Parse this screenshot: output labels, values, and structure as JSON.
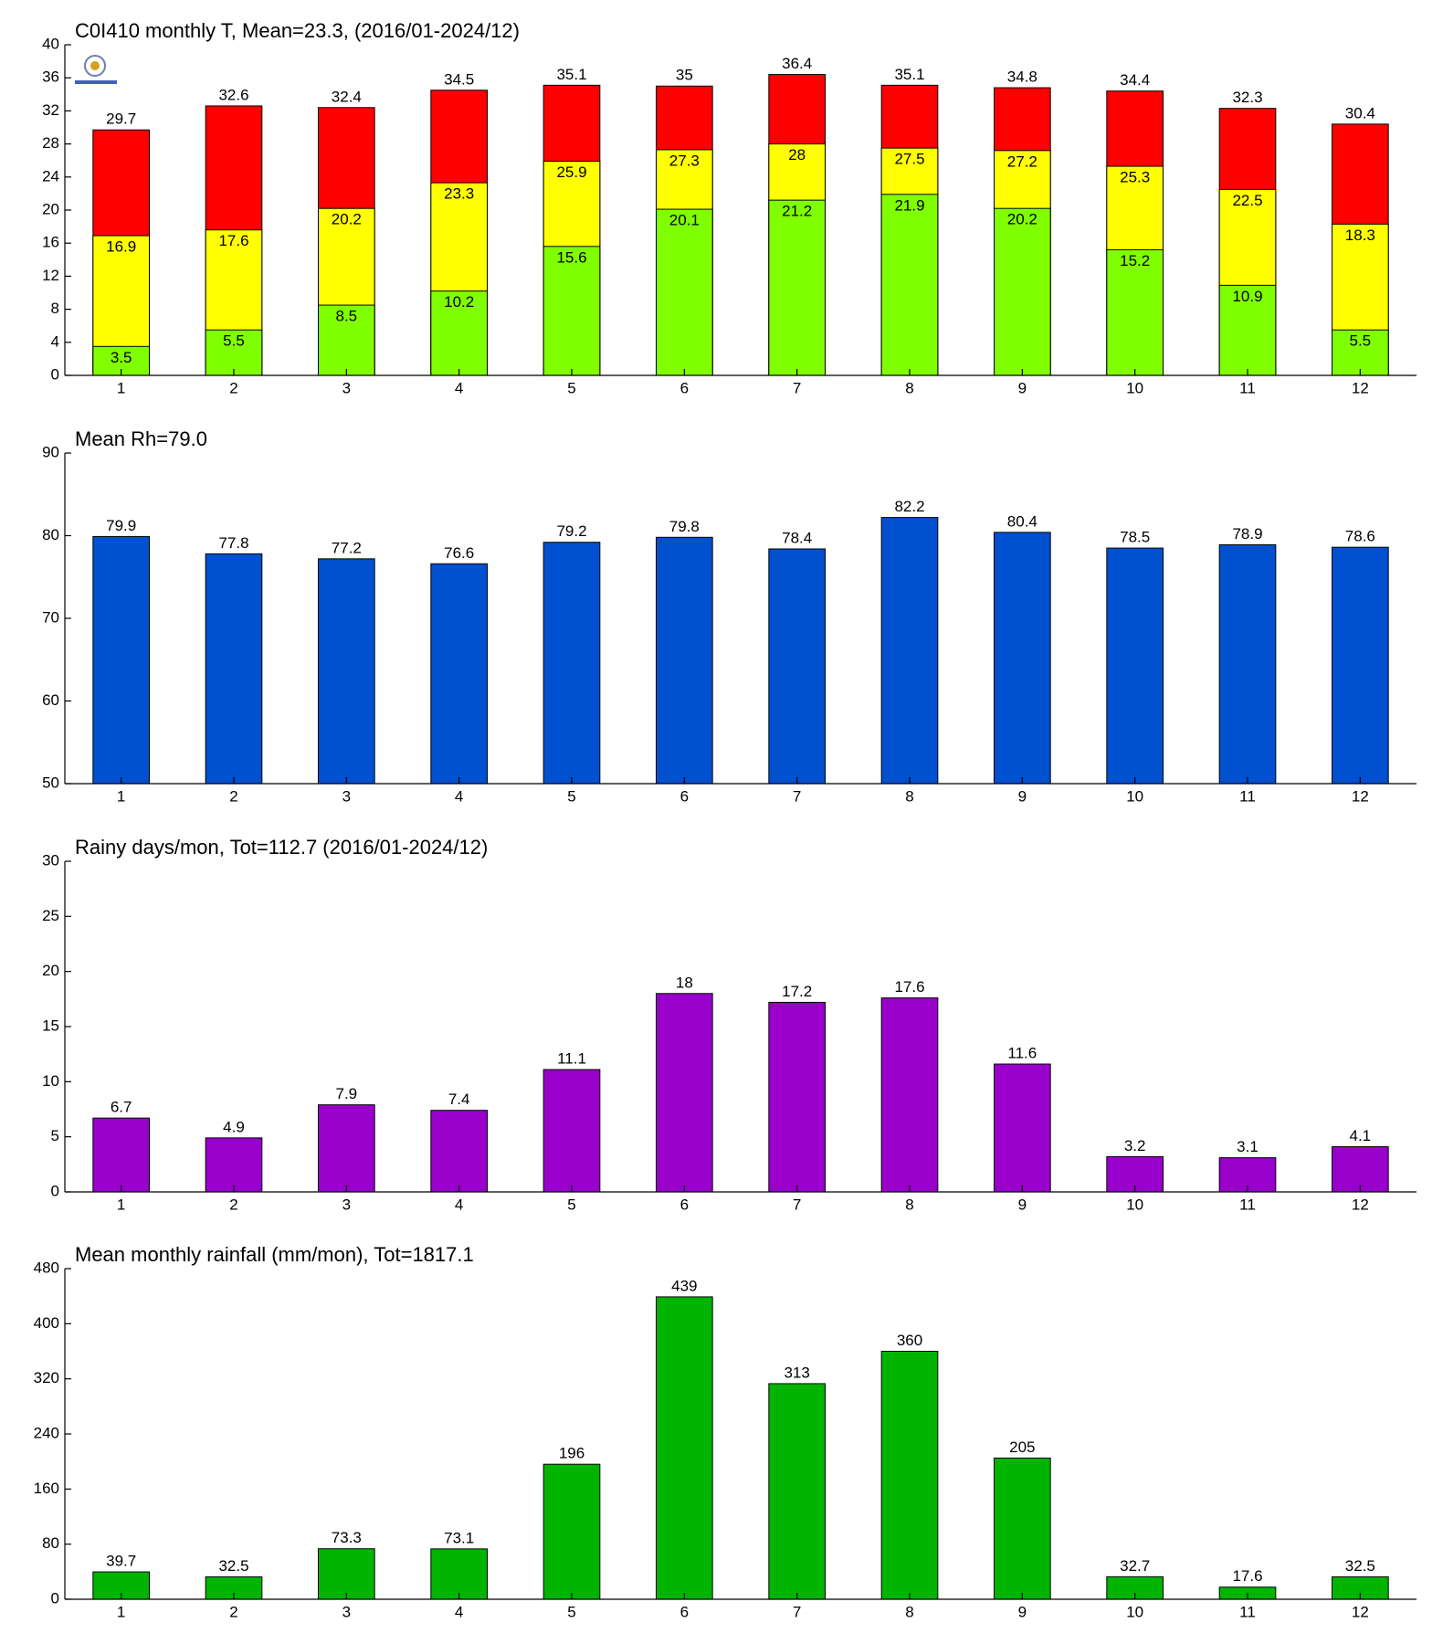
{
  "chart_data": [
    {
      "type": "bar",
      "title": "C0I410 monthly T, Mean=23.3, (2016/01-2024/12)",
      "categories": [
        "1",
        "2",
        "3",
        "4",
        "5",
        "6",
        "7",
        "8",
        "9",
        "10",
        "11",
        "12"
      ],
      "series": [
        {
          "color": "#ff0000",
          "values": [
            29.7,
            32.6,
            32.4,
            34.5,
            35.1,
            35,
            36.4,
            35.1,
            34.8,
            34.4,
            32.3,
            30.4
          ]
        },
        {
          "color": "#ffff00",
          "values": [
            16.9,
            17.6,
            20.2,
            23.3,
            25.9,
            27.3,
            28,
            27.5,
            27.2,
            25.3,
            22.5,
            18.3
          ]
        },
        {
          "color": "#80ff00",
          "values": [
            3.5,
            5.5,
            8.5,
            10.2,
            15.6,
            20.1,
            21.2,
            21.9,
            20.2,
            15.2,
            10.9,
            5.5
          ]
        }
      ],
      "ylim": [
        0,
        40
      ],
      "yticks": [
        0,
        4,
        8,
        12,
        16,
        20,
        24,
        28,
        32,
        36,
        40
      ]
    },
    {
      "type": "bar",
      "title": "Mean Rh=79.0",
      "categories": [
        "1",
        "2",
        "3",
        "4",
        "5",
        "6",
        "7",
        "8",
        "9",
        "10",
        "11",
        "12"
      ],
      "series": [
        {
          "color": "#0050d0",
          "values": [
            79.9,
            77.8,
            77.2,
            76.6,
            79.2,
            79.8,
            78.4,
            82.2,
            80.4,
            78.5,
            78.9,
            78.6
          ]
        }
      ],
      "ylim": [
        50,
        90
      ],
      "yticks": [
        50,
        60,
        70,
        80,
        90
      ]
    },
    {
      "type": "bar",
      "title": "Rainy days/mon, Tot=112.7 (2016/01-2024/12)",
      "categories": [
        "1",
        "2",
        "3",
        "4",
        "5",
        "6",
        "7",
        "8",
        "9",
        "10",
        "11",
        "12"
      ],
      "series": [
        {
          "color": "#9900cc",
          "values": [
            6.7,
            4.9,
            7.9,
            7.4,
            11.1,
            18,
            17.2,
            17.6,
            11.6,
            3.2,
            3.1,
            4.1
          ]
        }
      ],
      "ylim": [
        0,
        30
      ],
      "yticks": [
        0,
        5,
        10,
        15,
        20,
        25,
        30
      ]
    },
    {
      "type": "bar",
      "title": "Mean monthly rainfall (mm/mon), Tot=1817.1",
      "categories": [
        "1",
        "2",
        "3",
        "4",
        "5",
        "6",
        "7",
        "8",
        "9",
        "10",
        "11",
        "12"
      ],
      "series": [
        {
          "color": "#00b400",
          "values": [
            39.7,
            32.5,
            73.3,
            73.1,
            196,
            439,
            313,
            360,
            205,
            32.7,
            17.6,
            32.5
          ]
        }
      ],
      "ylim": [
        0,
        480
      ],
      "yticks": [
        0,
        80,
        160,
        240,
        320,
        400,
        480
      ]
    }
  ]
}
